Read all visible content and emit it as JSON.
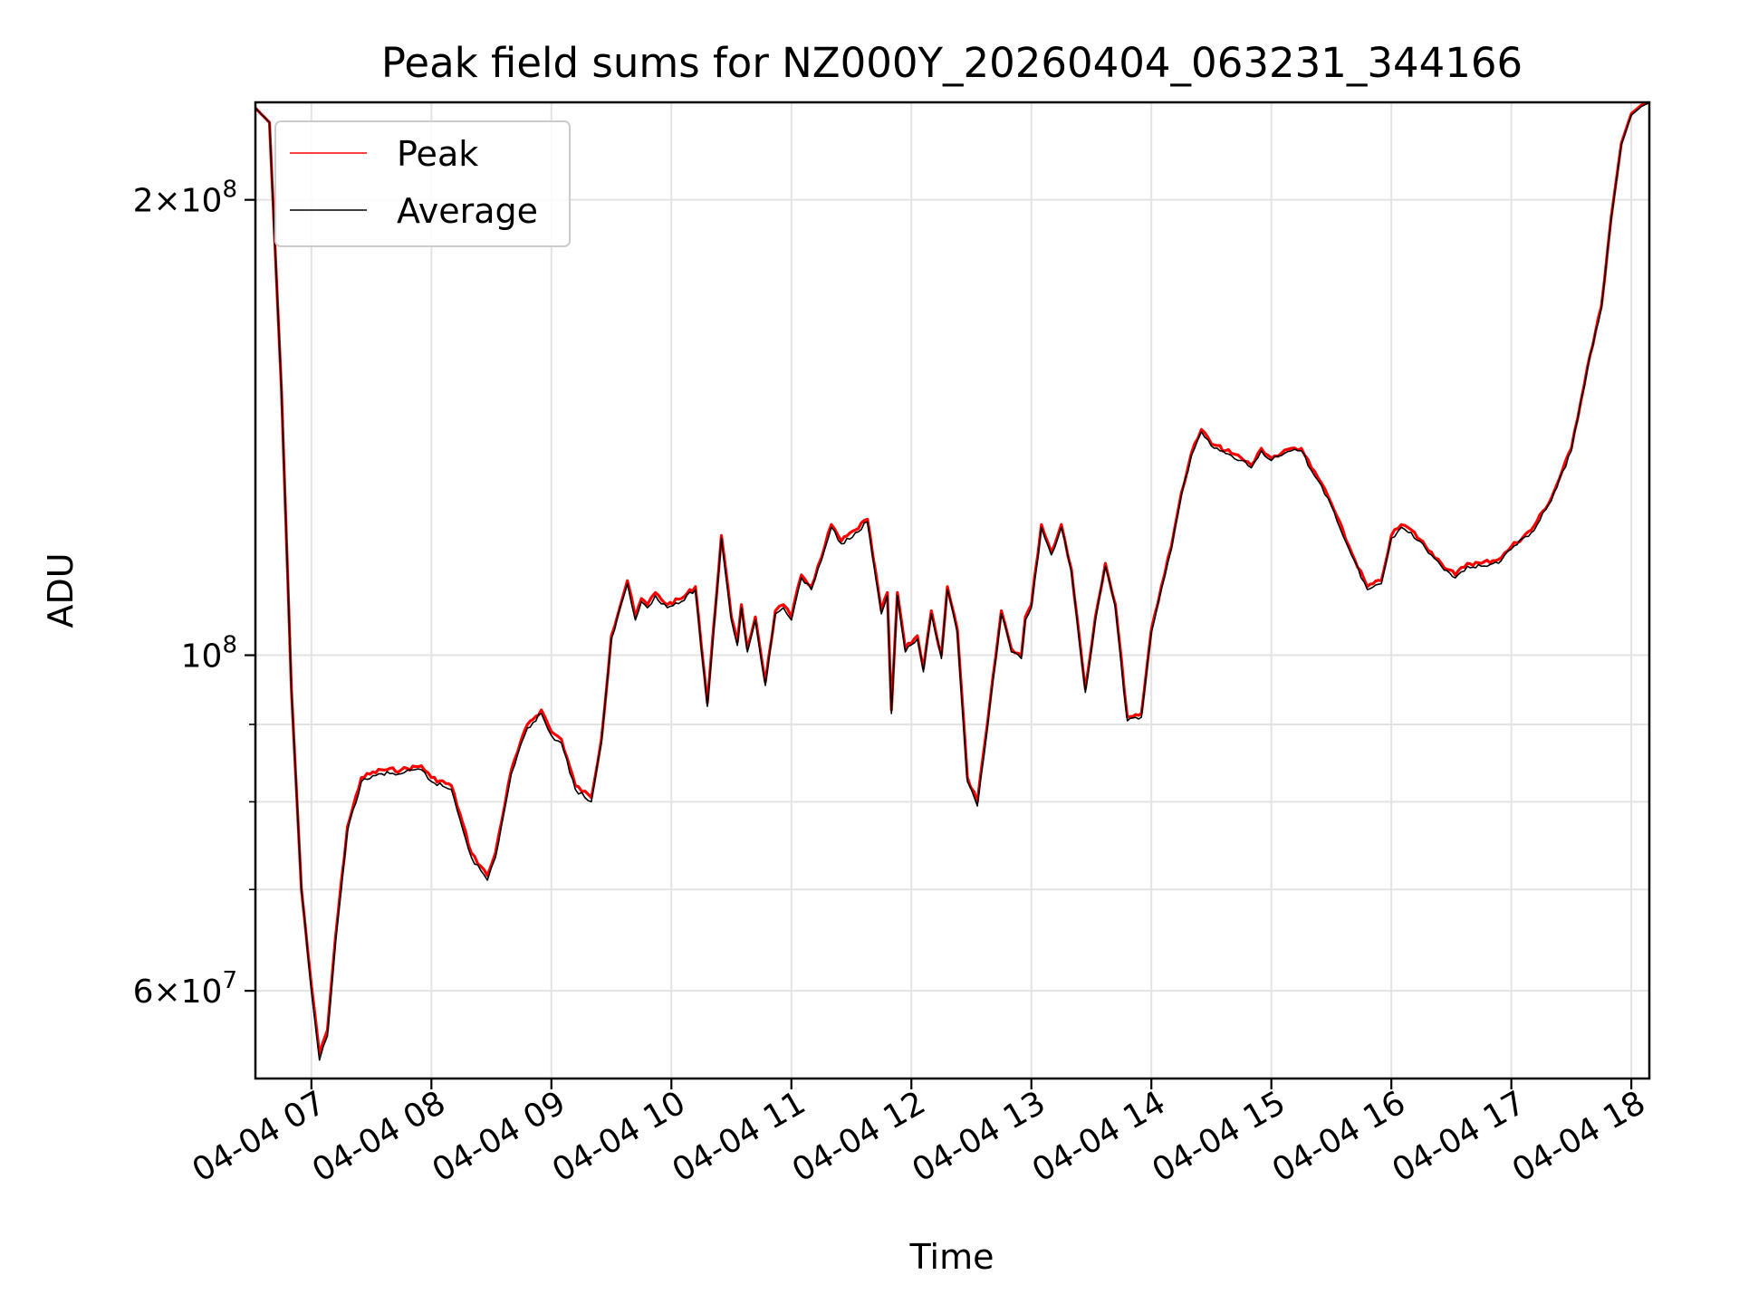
{
  "chart_data": {
    "type": "line",
    "title": "Peak field sums for NZ000Y_20260404_063231_344166",
    "xlabel": "Time",
    "ylabel": "ADU",
    "yscale": "log",
    "ylim": [
      52500000,
      232000000
    ],
    "xlim": [
      "04-04 06:32",
      "04-04 18:09"
    ],
    "grid": true,
    "legend_position": "top-left",
    "x_ticks": [
      "04-04 07",
      "04-04 08",
      "04-04 09",
      "04-04 10",
      "04-04 11",
      "04-04 12",
      "04-04 13",
      "04-04 14",
      "04-04 15",
      "04-04 16",
      "04-04 17",
      "04-04 18"
    ],
    "y_ticks": [
      {
        "value": 60000000,
        "mantissa": "6",
        "exp": "7"
      },
      {
        "value": 100000000,
        "mantissa": "",
        "exp": "8"
      },
      {
        "value": 200000000,
        "mantissa": "2",
        "exp": "8"
      }
    ],
    "x": [
      "06:32",
      "06:39",
      "06:45",
      "06:50",
      "06:55",
      "07:00",
      "07:04",
      "07:08",
      "07:12",
      "07:18",
      "07:25",
      "07:35",
      "07:45",
      "07:55",
      "08:00",
      "08:10",
      "08:20",
      "08:28",
      "08:32",
      "08:40",
      "08:48",
      "08:55",
      "09:00",
      "09:05",
      "09:12",
      "09:20",
      "09:25",
      "09:30",
      "09:38",
      "09:42",
      "09:45",
      "09:48",
      "09:52",
      "09:58",
      "10:05",
      "10:12",
      "10:18",
      "10:25",
      "10:30",
      "10:33",
      "10:35",
      "10:38",
      "10:42",
      "10:47",
      "10:52",
      "10:56",
      "11:00",
      "11:05",
      "11:10",
      "11:15",
      "11:20",
      "11:25",
      "11:32",
      "11:38",
      "11:45",
      "11:48",
      "11:50",
      "11:53",
      "11:57",
      "12:03",
      "12:06",
      "12:10",
      "12:12",
      "12:15",
      "12:18",
      "12:23",
      "12:28",
      "12:33",
      "12:38",
      "12:45",
      "12:50",
      "12:55",
      "12:57",
      "13:00",
      "13:05",
      "13:10",
      "13:15",
      "13:20",
      "13:27",
      "13:32",
      "13:37",
      "13:42",
      "13:48",
      "13:55",
      "14:00",
      "14:05",
      "14:10",
      "14:15",
      "14:20",
      "14:25",
      "14:30",
      "14:40",
      "14:45",
      "14:50",
      "14:55",
      "15:00",
      "15:05",
      "15:10",
      "15:15",
      "15:20",
      "15:25",
      "15:30",
      "15:40",
      "15:48",
      "15:55",
      "16:00",
      "16:05",
      "16:10",
      "16:20",
      "16:25",
      "16:32",
      "16:38",
      "16:45",
      "16:55",
      "17:00",
      "17:10",
      "17:20",
      "17:30",
      "17:38",
      "17:45",
      "17:50",
      "17:55",
      "18:00",
      "18:05",
      "18:09"
    ],
    "series": [
      {
        "name": "Peak",
        "color": "#ff0000",
        "values": [
          230000000,
          225000000,
          150000000,
          95000000,
          70000000,
          60500000,
          54500000,
          56500000,
          65000000,
          77000000,
          83000000,
          84000000,
          84000000,
          84500000,
          83000000,
          82000000,
          74000000,
          71500000,
          74000000,
          84000000,
          90000000,
          92000000,
          89000000,
          88000000,
          82000000,
          80500000,
          88000000,
          103000000,
          112000000,
          106000000,
          109000000,
          108000000,
          110000000,
          108000000,
          109000000,
          111000000,
          93000000,
          120000000,
          106000000,
          102000000,
          108000000,
          101000000,
          106000000,
          96000000,
          107000000,
          108000000,
          106000000,
          113000000,
          111000000,
          116000000,
          122000000,
          119000000,
          121000000,
          123000000,
          107000000,
          110000000,
          92000000,
          110000000,
          101000000,
          103000000,
          98000000,
          107000000,
          104000000,
          100000000,
          111000000,
          104000000,
          83000000,
          80000000,
          90000000,
          107000000,
          101000000,
          100000000,
          106000000,
          108000000,
          122000000,
          117000000,
          122000000,
          114000000,
          95000000,
          106000000,
          115000000,
          108000000,
          91000000,
          91500000,
          104000000,
          111000000,
          118000000,
          128000000,
          136000000,
          141000000,
          138000000,
          136000000,
          135000000,
          133500000,
          137000000,
          135000000,
          136000000,
          137000000,
          137000000,
          133000000,
          130000000,
          126000000,
          117000000,
          111000000,
          112000000,
          120000000,
          122000000,
          121000000,
          117000000,
          115000000,
          113000000,
          115000000,
          115000000,
          116000000,
          118000000,
          121000000,
          127000000,
          137000000,
          155000000,
          170000000,
          195000000,
          218000000,
          228000000,
          231000000,
          232000000
        ]
      },
      {
        "name": "Average",
        "color": "#000000",
        "values": [
          230000000,
          225000000,
          150000000,
          95000000,
          70000000,
          60000000,
          54000000,
          56000000,
          64500000,
          76500000,
          82500000,
          83500000,
          83500000,
          84000000,
          82500000,
          81500000,
          73500000,
          71000000,
          73500000,
          83500000,
          89500000,
          91500000,
          88500000,
          87500000,
          81500000,
          80000000,
          87500000,
          102500000,
          111500000,
          105500000,
          108500000,
          107500000,
          109500000,
          107500000,
          108500000,
          110500000,
          92500000,
          119500000,
          105500000,
          101500000,
          107500000,
          100500000,
          105500000,
          95500000,
          106500000,
          107500000,
          105500000,
          112500000,
          110500000,
          115500000,
          121500000,
          118500000,
          120500000,
          122500000,
          106500000,
          109500000,
          91500000,
          109500000,
          100500000,
          102500000,
          97500000,
          106500000,
          103500000,
          99500000,
          110500000,
          103500000,
          82500000,
          79500000,
          89500000,
          106500000,
          100500000,
          99500000,
          105500000,
          107500000,
          121500000,
          116500000,
          121500000,
          113500000,
          94500000,
          105500000,
          114500000,
          107500000,
          90500000,
          91000000,
          103500000,
          110500000,
          117500000,
          127500000,
          135500000,
          140500000,
          137500000,
          135500000,
          134500000,
          133000000,
          136500000,
          134500000,
          135500000,
          136500000,
          136500000,
          132500000,
          129500000,
          125500000,
          116500000,
          110500000,
          111500000,
          119500000,
          121500000,
          120500000,
          116500000,
          114500000,
          112500000,
          114500000,
          114500000,
          115500000,
          117500000,
          120500000,
          126500000,
          136500000,
          154500000,
          169500000,
          194500000,
          217500000,
          227500000,
          230500000,
          232000000
        ]
      }
    ]
  }
}
